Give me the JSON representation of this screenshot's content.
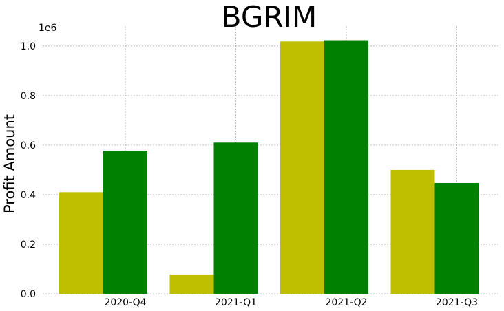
{
  "chart_data": {
    "type": "bar",
    "title": "BGRIM",
    "xlabel": "",
    "ylabel": "Profit Amount",
    "y_offset_label": "1e6",
    "categories": [
      "2020-Q4",
      "2021-Q1",
      "2021-Q2",
      "2021-Q3"
    ],
    "series": [
      {
        "color": "#bfbf00",
        "values": [
          410000,
          78000,
          1018000,
          500000
        ]
      },
      {
        "color": "#008000",
        "values": [
          577000,
          610000,
          1023000,
          447000
        ]
      }
    ],
    "ylim": [
      0,
      1080000
    ],
    "yticks": [
      0,
      200000,
      400000,
      600000,
      800000,
      1000000
    ],
    "ytick_labels": [
      "0.0",
      "0.2",
      "0.4",
      "0.6",
      "0.8",
      "1.0"
    ],
    "grid": true,
    "legend": "none"
  }
}
